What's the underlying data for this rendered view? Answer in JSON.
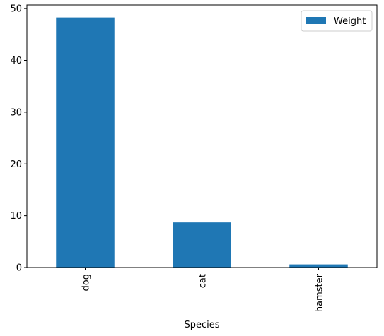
{
  "chart_data": {
    "type": "bar",
    "categories": [
      "dog",
      "cat",
      "hamster"
    ],
    "series": [
      {
        "name": "Weight",
        "values": [
          48.3,
          8.7,
          0.6
        ],
        "color": "#1f77b4"
      }
    ],
    "xlabel": "Species",
    "ylabel": "",
    "ylim": [
      0,
      50.7
    ],
    "yticks": [
      0,
      10,
      20,
      30,
      40,
      50
    ],
    "grid": false,
    "legend_position": "top-right",
    "x_tick_rotation": "vertical"
  }
}
